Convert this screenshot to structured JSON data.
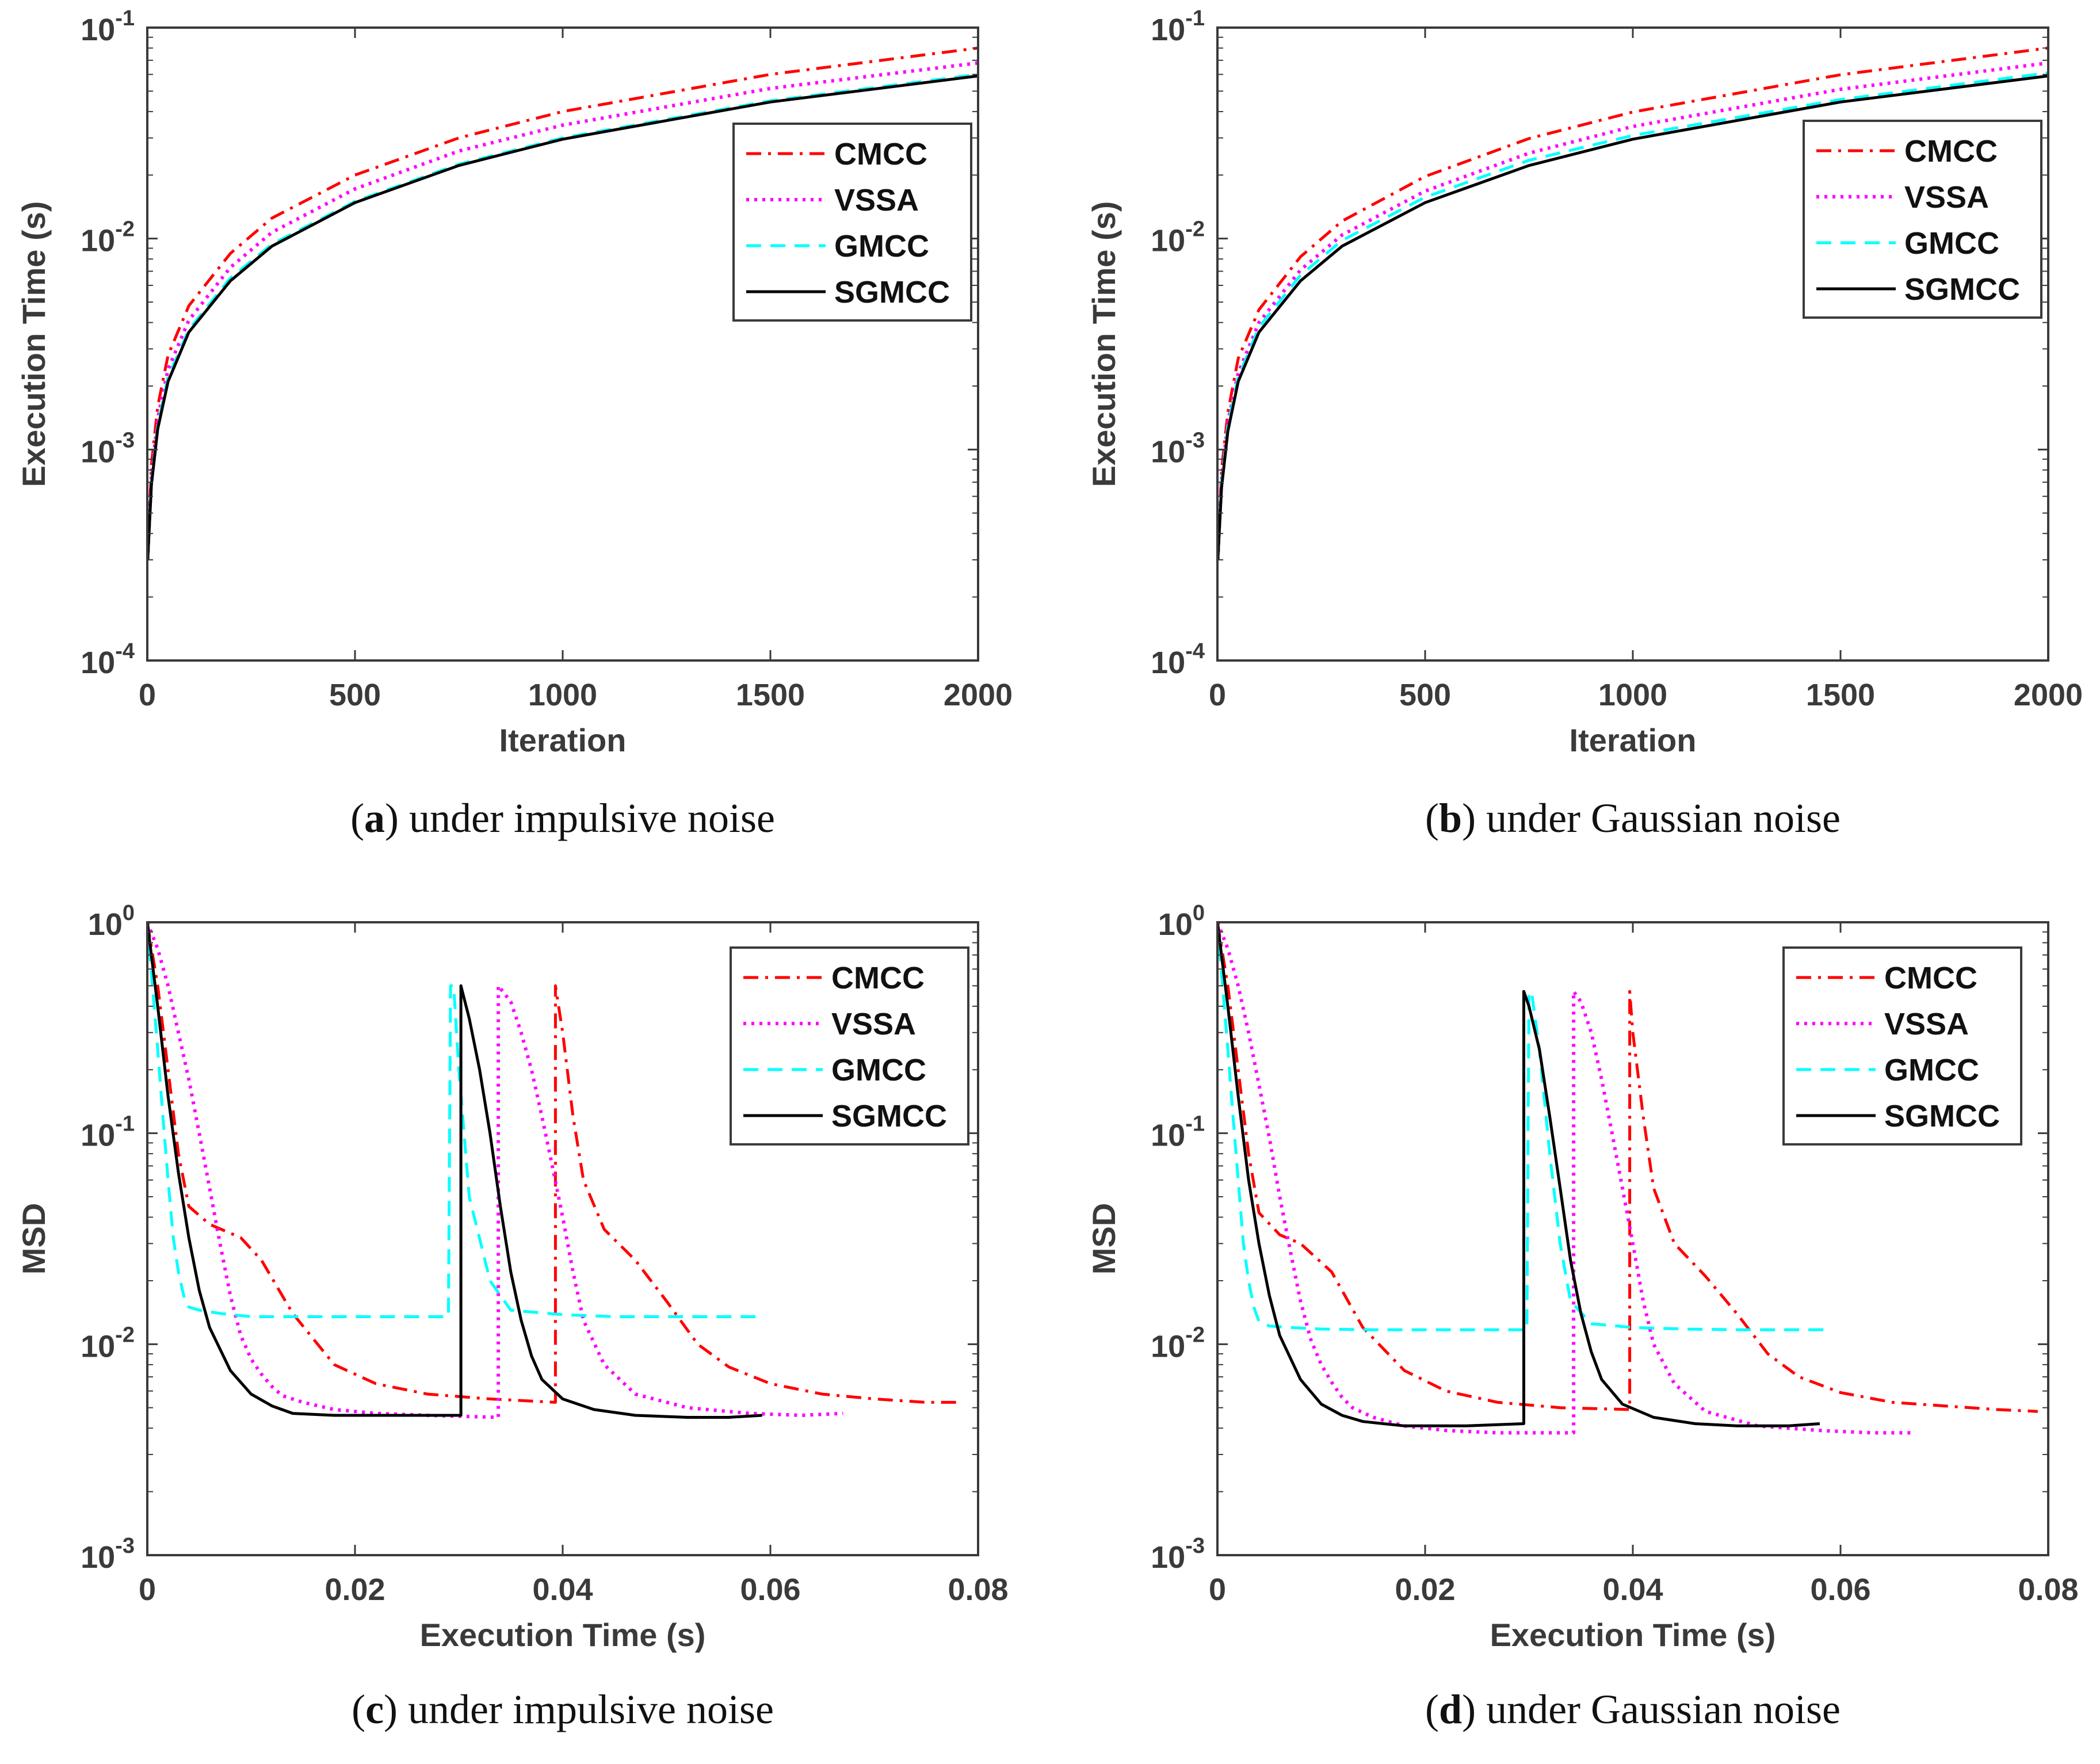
{
  "figure": {
    "panels": [
      {
        "id": "a",
        "caption_letter": "a",
        "caption_text": "under impulsive noise"
      },
      {
        "id": "b",
        "caption_letter": "b",
        "caption_text": "under Gaussian noise"
      },
      {
        "id": "c",
        "caption_letter": "c",
        "caption_text": "under impulsive noise"
      },
      {
        "id": "d",
        "caption_letter": "d",
        "caption_text": "under Gaussian noise"
      }
    ]
  },
  "colors": {
    "CMCC": "#ff0000",
    "VSSA": "#ff00ff",
    "GMCC": "#00ffff",
    "SGMCC": "#000000",
    "axis": "#3a3a3a"
  },
  "chart_data": [
    {
      "panel": "a",
      "type": "line",
      "title": "",
      "xlabel": "Iteration",
      "ylabel": "Execution Time (s)",
      "yscale": "log",
      "xlim": [
        0,
        2000
      ],
      "ylim": [
        0.0001,
        0.1
      ],
      "xticks": [
        0,
        500,
        1000,
        1500,
        2000
      ],
      "xtick_labels": [
        "0",
        "500",
        "1000",
        "1500",
        "2000"
      ],
      "yticks": [
        0.0001,
        0.001,
        0.01,
        0.1
      ],
      "ytick_exponents": [
        "-4",
        "-3",
        "-2",
        "-1"
      ],
      "ytick_base": "10",
      "legend_position": "top-right",
      "series": [
        {
          "name": "CMCC",
          "style": "dashdot",
          "x": [
            1,
            10,
            25,
            50,
            100,
            200,
            300,
            500,
            750,
            1000,
            1500,
            2000
          ],
          "y": [
            0.0003,
            0.00085,
            0.0016,
            0.0028,
            0.0048,
            0.0085,
            0.0125,
            0.02,
            0.03,
            0.04,
            0.06,
            0.08
          ]
        },
        {
          "name": "VSSA",
          "style": "dotted",
          "x": [
            1,
            10,
            25,
            50,
            100,
            200,
            300,
            500,
            750,
            1000,
            1500,
            2000
          ],
          "y": [
            0.0003,
            0.00075,
            0.0014,
            0.0024,
            0.0041,
            0.0073,
            0.0107,
            0.0172,
            0.026,
            0.0345,
            0.0515,
            0.068
          ]
        },
        {
          "name": "GMCC",
          "style": "dashed",
          "x": [
            1,
            10,
            25,
            50,
            100,
            200,
            300,
            500,
            750,
            1000,
            1500,
            2000
          ],
          "y": [
            0.0003,
            0.0007,
            0.0013,
            0.0022,
            0.0037,
            0.0065,
            0.0094,
            0.015,
            0.0225,
            0.03,
            0.045,
            0.06
          ]
        },
        {
          "name": "SGMCC",
          "style": "solid",
          "x": [
            1,
            10,
            25,
            50,
            100,
            200,
            300,
            500,
            750,
            1000,
            1500,
            2000
          ],
          "y": [
            0.0003,
            0.00068,
            0.00125,
            0.0021,
            0.0036,
            0.0063,
            0.0092,
            0.0148,
            0.0222,
            0.0296,
            0.0444,
            0.059
          ]
        }
      ]
    },
    {
      "panel": "b",
      "type": "line",
      "title": "",
      "xlabel": "Iteration",
      "ylabel": "Execution Time (s)",
      "yscale": "log",
      "xlim": [
        0,
        2000
      ],
      "ylim": [
        0.0001,
        0.1
      ],
      "xticks": [
        0,
        500,
        1000,
        1500,
        2000
      ],
      "xtick_labels": [
        "0",
        "500",
        "1000",
        "1500",
        "2000"
      ],
      "yticks": [
        0.0001,
        0.001,
        0.01,
        0.1
      ],
      "ytick_exponents": [
        "-4",
        "-3",
        "-2",
        "-1"
      ],
      "ytick_base": "10",
      "legend_position": "top-right",
      "series": [
        {
          "name": "CMCC",
          "style": "dashdot",
          "x": [
            1,
            10,
            25,
            50,
            100,
            200,
            300,
            500,
            750,
            1000,
            1500,
            2000
          ],
          "y": [
            0.0003,
            0.0008,
            0.0015,
            0.0027,
            0.0046,
            0.0082,
            0.0121,
            0.0197,
            0.0298,
            0.0398,
            0.0598,
            0.08
          ]
        },
        {
          "name": "VSSA",
          "style": "dotted",
          "x": [
            1,
            10,
            25,
            50,
            100,
            200,
            300,
            500,
            750,
            1000,
            1500,
            2000
          ],
          "y": [
            0.0003,
            0.00072,
            0.00135,
            0.0023,
            0.004,
            0.0071,
            0.0104,
            0.0168,
            0.0254,
            0.034,
            0.051,
            0.068
          ]
        },
        {
          "name": "GMCC",
          "style": "dashed",
          "x": [
            1,
            10,
            25,
            50,
            100,
            200,
            300,
            500,
            750,
            1000,
            1500,
            2000
          ],
          "y": [
            0.0003,
            0.00069,
            0.0013,
            0.0022,
            0.0038,
            0.0067,
            0.0098,
            0.0157,
            0.0235,
            0.0308,
            0.0456,
            0.061
          ]
        },
        {
          "name": "SGMCC",
          "style": "solid",
          "x": [
            1,
            10,
            25,
            50,
            100,
            200,
            300,
            500,
            750,
            1000,
            1500,
            2000
          ],
          "y": [
            0.0003,
            0.00066,
            0.00122,
            0.0021,
            0.0036,
            0.0063,
            0.0092,
            0.0148,
            0.0222,
            0.0296,
            0.0444,
            0.059
          ]
        }
      ]
    },
    {
      "panel": "c",
      "type": "line",
      "title": "",
      "xlabel": "Execution Time (s)",
      "ylabel": "MSD",
      "yscale": "log",
      "xlim": [
        0,
        0.08
      ],
      "ylim": [
        0.001,
        1
      ],
      "xticks": [
        0,
        0.02,
        0.04,
        0.06,
        0.08
      ],
      "xtick_labels": [
        "0",
        "0.02",
        "0.04",
        "0.06",
        "0.08"
      ],
      "yticks": [
        0.001,
        0.01,
        0.1,
        1
      ],
      "ytick_exponents": [
        "-3",
        "-2",
        "-1",
        "0"
      ],
      "ytick_base": "10",
      "legend_position": "top-right",
      "series": [
        {
          "name": "CMCC",
          "style": "dashdot",
          "x": [
            0,
            0.001,
            0.002,
            0.003,
            0.004,
            0.006,
            0.009,
            0.011,
            0.014,
            0.018,
            0.022,
            0.027,
            0.033,
            0.0393,
            0.0393,
            0.04,
            0.041,
            0.042,
            0.044,
            0.047,
            0.05,
            0.053,
            0.056,
            0.06,
            0.065,
            0.07,
            0.075,
            0.078
          ],
          "y": [
            1.0,
            0.5,
            0.2,
            0.08,
            0.045,
            0.037,
            0.032,
            0.025,
            0.014,
            0.008,
            0.0065,
            0.0058,
            0.0055,
            0.0053,
            0.5,
            0.3,
            0.12,
            0.06,
            0.035,
            0.025,
            0.016,
            0.01,
            0.0078,
            0.0065,
            0.0058,
            0.0055,
            0.0053,
            0.0053
          ]
        },
        {
          "name": "VSSA",
          "style": "dotted",
          "x": [
            0,
            0.001,
            0.002,
            0.003,
            0.004,
            0.005,
            0.006,
            0.007,
            0.008,
            0.009,
            0.01,
            0.011,
            0.012,
            0.013,
            0.015,
            0.018,
            0.022,
            0.027,
            0.0338,
            0.0338,
            0.035,
            0.036,
            0.037,
            0.038,
            0.039,
            0.04,
            0.041,
            0.042,
            0.044,
            0.047,
            0.052,
            0.058,
            0.063,
            0.067
          ],
          "y": [
            1.0,
            0.75,
            0.5,
            0.3,
            0.18,
            0.1,
            0.055,
            0.03,
            0.017,
            0.011,
            0.0085,
            0.0072,
            0.0063,
            0.0057,
            0.0053,
            0.0049,
            0.0047,
            0.0046,
            0.0045,
            0.5,
            0.42,
            0.3,
            0.2,
            0.12,
            0.07,
            0.04,
            0.022,
            0.013,
            0.008,
            0.0058,
            0.005,
            0.0047,
            0.0046,
            0.0047
          ]
        },
        {
          "name": "GMCC",
          "style": "dashed",
          "x": [
            0,
            0.0005,
            0.001,
            0.0015,
            0.002,
            0.0025,
            0.003,
            0.0035,
            0.004,
            0.005,
            0.007,
            0.01,
            0.015,
            0.02,
            0.025,
            0.029,
            0.0292,
            0.0295,
            0.03,
            0.031,
            0.033,
            0.035,
            0.04,
            0.045,
            0.05,
            0.055,
            0.059
          ],
          "y": [
            1.0,
            0.5,
            0.25,
            0.12,
            0.06,
            0.032,
            0.022,
            0.017,
            0.015,
            0.0145,
            0.014,
            0.0135,
            0.0135,
            0.0135,
            0.0135,
            0.0135,
            0.5,
            0.5,
            0.2,
            0.05,
            0.02,
            0.0145,
            0.0138,
            0.0135,
            0.0135,
            0.0135,
            0.0135
          ]
        },
        {
          "name": "SGMCC",
          "style": "solid",
          "x": [
            0,
            0.001,
            0.002,
            0.003,
            0.004,
            0.005,
            0.006,
            0.008,
            0.01,
            0.012,
            0.014,
            0.018,
            0.024,
            0.0302,
            0.0302,
            0.031,
            0.032,
            0.033,
            0.034,
            0.035,
            0.036,
            0.037,
            0.038,
            0.04,
            0.043,
            0.047,
            0.052,
            0.056,
            0.0592
          ],
          "y": [
            1.0,
            0.4,
            0.15,
            0.065,
            0.032,
            0.018,
            0.012,
            0.0075,
            0.0058,
            0.0051,
            0.0047,
            0.0046,
            0.0046,
            0.0046,
            0.5,
            0.35,
            0.2,
            0.1,
            0.045,
            0.022,
            0.013,
            0.0088,
            0.0068,
            0.0055,
            0.0049,
            0.0046,
            0.0045,
            0.0045,
            0.0046
          ]
        }
      ]
    },
    {
      "panel": "d",
      "type": "line",
      "title": "",
      "xlabel": "Execution Time (s)",
      "ylabel": "MSD",
      "yscale": "log",
      "xlim": [
        0,
        0.08
      ],
      "ylim": [
        0.001,
        1
      ],
      "xticks": [
        0,
        0.02,
        0.04,
        0.06,
        0.08
      ],
      "xtick_labels": [
        "0",
        "0.02",
        "0.04",
        "0.06",
        "0.08"
      ],
      "yticks": [
        0.001,
        0.01,
        0.1,
        1
      ],
      "ytick_exponents": [
        "-3",
        "-2",
        "-1",
        "0"
      ],
      "ytick_base": "10",
      "legend_position": "top-right",
      "series": [
        {
          "name": "CMCC",
          "style": "dashdot",
          "x": [
            0,
            0.001,
            0.002,
            0.003,
            0.004,
            0.006,
            0.008,
            0.011,
            0.014,
            0.018,
            0.022,
            0.027,
            0.033,
            0.0397,
            0.0397,
            0.04,
            0.041,
            0.042,
            0.044,
            0.047,
            0.05,
            0.053,
            0.056,
            0.06,
            0.065,
            0.07,
            0.075,
            0.079
          ],
          "y": [
            1.0,
            0.5,
            0.2,
            0.08,
            0.042,
            0.033,
            0.03,
            0.022,
            0.012,
            0.0075,
            0.006,
            0.0053,
            0.005,
            0.0049,
            0.47,
            0.3,
            0.12,
            0.055,
            0.03,
            0.021,
            0.014,
            0.009,
            0.007,
            0.0059,
            0.0053,
            0.0051,
            0.0049,
            0.0048
          ]
        },
        {
          "name": "VSSA",
          "style": "dotted",
          "x": [
            0,
            0.001,
            0.002,
            0.003,
            0.004,
            0.005,
            0.006,
            0.007,
            0.008,
            0.009,
            0.01,
            0.011,
            0.012,
            0.013,
            0.015,
            0.018,
            0.022,
            0.027,
            0.0343,
            0.0343,
            0.035,
            0.036,
            0.037,
            0.038,
            0.039,
            0.04,
            0.041,
            0.042,
            0.044,
            0.047,
            0.052,
            0.058,
            0.063,
            0.067
          ],
          "y": [
            1.0,
            0.75,
            0.5,
            0.3,
            0.17,
            0.095,
            0.05,
            0.028,
            0.016,
            0.0105,
            0.008,
            0.0066,
            0.0056,
            0.005,
            0.0045,
            0.0041,
            0.0039,
            0.0038,
            0.0038,
            0.47,
            0.42,
            0.3,
            0.18,
            0.1,
            0.055,
            0.03,
            0.016,
            0.01,
            0.0065,
            0.0048,
            0.0041,
            0.0039,
            0.0038,
            0.0038
          ]
        },
        {
          "name": "GMCC",
          "style": "dashed",
          "x": [
            0,
            0.0005,
            0.001,
            0.0015,
            0.002,
            0.0025,
            0.003,
            0.0035,
            0.004,
            0.005,
            0.007,
            0.01,
            0.015,
            0.02,
            0.025,
            0.0298,
            0.03,
            0.0303,
            0.031,
            0.032,
            0.033,
            0.034,
            0.036,
            0.04,
            0.045,
            0.05,
            0.055,
            0.059
          ],
          "y": [
            1.0,
            0.5,
            0.25,
            0.12,
            0.06,
            0.03,
            0.02,
            0.015,
            0.0128,
            0.0122,
            0.012,
            0.0118,
            0.0117,
            0.0117,
            0.0117,
            0.0117,
            0.47,
            0.45,
            0.25,
            0.08,
            0.03,
            0.016,
            0.0125,
            0.012,
            0.0118,
            0.0117,
            0.0117,
            0.0117
          ]
        },
        {
          "name": "SGMCC",
          "style": "solid",
          "x": [
            0,
            0.001,
            0.002,
            0.003,
            0.004,
            0.005,
            0.006,
            0.008,
            0.01,
            0.012,
            0.014,
            0.018,
            0.024,
            0.0295,
            0.0295,
            0.03,
            0.031,
            0.032,
            0.033,
            0.034,
            0.035,
            0.036,
            0.037,
            0.039,
            0.042,
            0.046,
            0.05,
            0.055,
            0.058
          ],
          "y": [
            1.0,
            0.4,
            0.15,
            0.06,
            0.03,
            0.017,
            0.011,
            0.0068,
            0.0052,
            0.0046,
            0.0043,
            0.0041,
            0.0041,
            0.0042,
            0.47,
            0.4,
            0.25,
            0.12,
            0.055,
            0.025,
            0.014,
            0.0092,
            0.0068,
            0.0052,
            0.0045,
            0.0042,
            0.0041,
            0.0041,
            0.0042
          ]
        }
      ]
    }
  ]
}
